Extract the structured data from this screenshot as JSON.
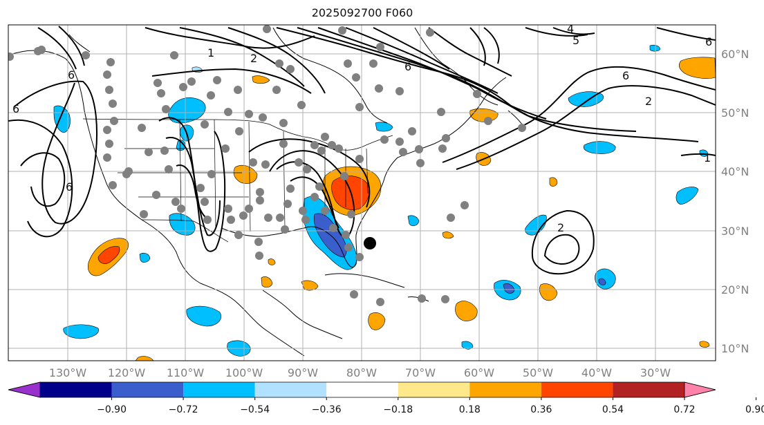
{
  "title": "2025092700 F060",
  "map": {
    "lon_range": [
      -141,
      -19
    ],
    "lat_range": [
      8,
      65
    ],
    "lon_ticks": [
      "130°W",
      "120°W",
      "110°W",
      "100°W",
      "90°W",
      "80°W",
      "70°W",
      "60°W",
      "50°W",
      "40°W",
      "30°W"
    ],
    "lat_ticks": [
      "60°N",
      "50°N",
      "40°N",
      "30°N",
      "20°N",
      "10°N"
    ],
    "grid": true,
    "contour_labels": [
      "6",
      "2",
      "1",
      "4",
      "5",
      "6",
      "6",
      "6",
      "2",
      "1",
      "6",
      "2",
      "6"
    ],
    "colors": {
      "line": "#000000",
      "grid": "#b0b0b0",
      "station": "#808080",
      "negative_fill": "#00bfff",
      "positive_fill": "#ffa500",
      "strong_negative": "#3a5fcd",
      "strong_positive": "#ff4500"
    }
  },
  "colorbar": {
    "ticks": [
      "−0.90",
      "−0.72",
      "−0.54",
      "−0.36",
      "−0.18",
      "0.18",
      "0.36",
      "0.54",
      "0.72",
      "0.90"
    ],
    "colors": [
      "#9932cc",
      "#00008b",
      "#3a5fcd",
      "#00bfff",
      "#b0e2ff",
      "#ffffff",
      "#ffe88a",
      "#ffa500",
      "#ff4500",
      "#b22222",
      "#ff82ab"
    ]
  }
}
